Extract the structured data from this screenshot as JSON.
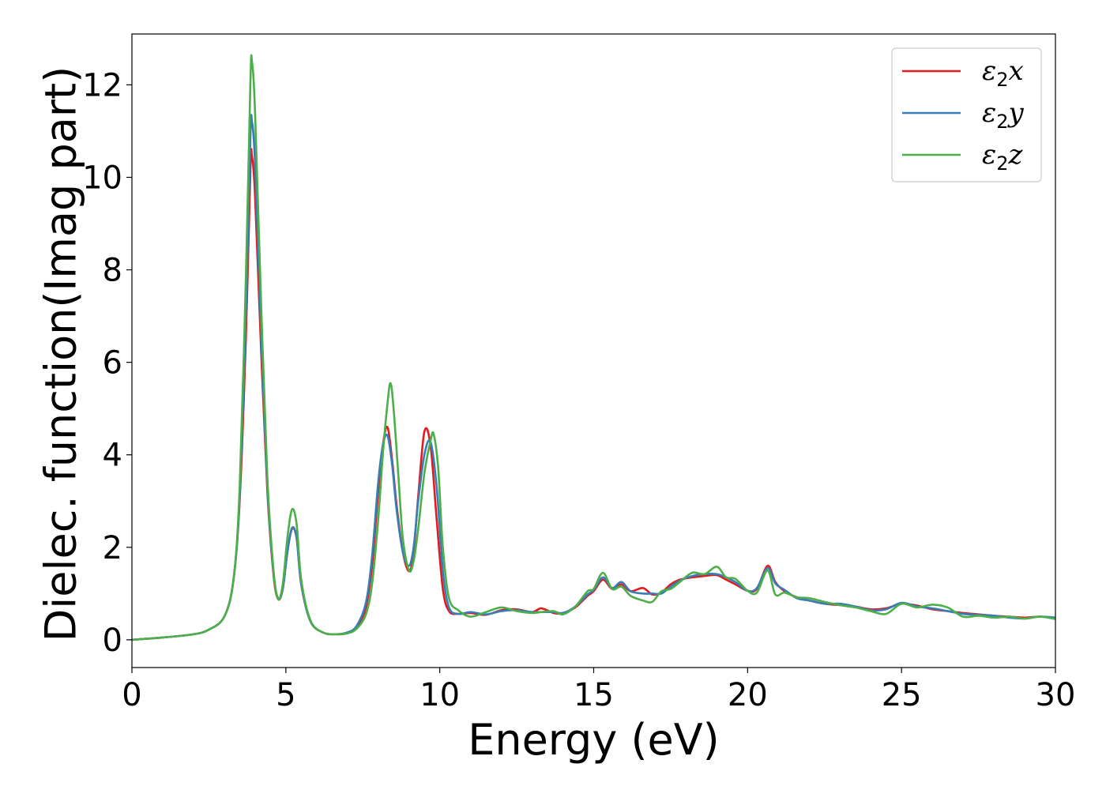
{
  "chart_data": {
    "type": "line",
    "title": "",
    "xlabel": "Energy (eV)",
    "ylabel": "Dielec. function(Imag part)",
    "xlim": [
      0,
      30
    ],
    "ylim": [
      -0.6,
      13.1
    ],
    "xticks": [
      0,
      5,
      10,
      15,
      20,
      25,
      30
    ],
    "yticks": [
      0,
      2,
      4,
      6,
      8,
      10,
      12
    ],
    "grid": false,
    "legend_position": "top-right",
    "colors": {
      "x": "#e41a1c",
      "y": "#377eb8",
      "z": "#4daf4a"
    },
    "series": [
      {
        "key": "x",
        "name": {
          "base": "ε",
          "sub": "2",
          "axis": "x"
        },
        "color": "#e41a1c",
        "x": [
          0,
          1,
          2,
          2.5,
          3,
          3.3,
          3.5,
          3.7,
          3.85,
          3.9,
          4.0,
          4.2,
          4.4,
          4.6,
          4.75,
          4.9,
          5.05,
          5.2,
          5.35,
          5.5,
          5.8,
          6.2,
          6.6,
          7.0,
          7.3,
          7.6,
          7.8,
          8.0,
          8.15,
          8.3,
          8.45,
          8.6,
          8.8,
          9.0,
          9.15,
          9.3,
          9.5,
          9.7,
          9.9,
          10.1,
          10.3,
          10.6,
          11.0,
          11.5,
          12.0,
          12.5,
          13.0,
          13.3,
          13.7,
          14.0,
          14.4,
          14.8,
          15.0,
          15.3,
          15.6,
          15.9,
          16.2,
          16.6,
          16.9,
          17.2,
          17.5,
          17.8,
          18.2,
          18.6,
          19.0,
          19.3,
          19.6,
          20.0,
          20.3,
          20.65,
          20.9,
          21.2,
          21.6,
          22.0,
          22.5,
          23.0,
          23.5,
          24.0,
          24.5,
          25.0,
          25.5,
          26.0,
          26.5,
          27.0,
          27.5,
          28.0,
          28.5,
          29.0,
          29.5,
          30.0
        ],
        "y": [
          0.0,
          0.05,
          0.12,
          0.22,
          0.5,
          1.3,
          3.0,
          6.5,
          10.2,
          10.45,
          9.6,
          6.2,
          3.2,
          1.4,
          0.88,
          1.1,
          1.9,
          2.4,
          2.2,
          1.2,
          0.4,
          0.16,
          0.12,
          0.15,
          0.28,
          0.7,
          1.6,
          3.2,
          4.2,
          4.6,
          3.9,
          2.9,
          1.9,
          1.48,
          1.9,
          3.1,
          4.5,
          4.2,
          2.6,
          1.1,
          0.62,
          0.56,
          0.58,
          0.54,
          0.64,
          0.66,
          0.6,
          0.68,
          0.58,
          0.58,
          0.7,
          0.95,
          1.05,
          1.3,
          1.1,
          1.2,
          1.05,
          1.12,
          0.98,
          1.02,
          1.2,
          1.3,
          1.35,
          1.38,
          1.4,
          1.3,
          1.2,
          1.06,
          1.1,
          1.6,
          1.25,
          1.05,
          0.92,
          0.85,
          0.78,
          0.75,
          0.72,
          0.66,
          0.68,
          0.78,
          0.74,
          0.66,
          0.62,
          0.58,
          0.55,
          0.52,
          0.5,
          0.48,
          0.5,
          0.47
        ]
      },
      {
        "key": "y",
        "name": {
          "base": "ε",
          "sub": "2",
          "axis": "y"
        },
        "color": "#377eb8",
        "x": [
          0,
          1,
          2,
          2.5,
          3,
          3.3,
          3.5,
          3.7,
          3.85,
          3.9,
          4.0,
          4.2,
          4.4,
          4.6,
          4.75,
          4.9,
          5.05,
          5.2,
          5.35,
          5.5,
          5.8,
          6.2,
          6.6,
          7.0,
          7.3,
          7.6,
          7.8,
          8.0,
          8.15,
          8.3,
          8.45,
          8.6,
          8.8,
          9.0,
          9.15,
          9.3,
          9.5,
          9.7,
          9.9,
          10.1,
          10.3,
          10.6,
          11.0,
          11.5,
          12.0,
          12.5,
          13.0,
          13.3,
          13.7,
          14.0,
          14.4,
          14.8,
          15.0,
          15.3,
          15.6,
          15.9,
          16.2,
          16.6,
          16.9,
          17.2,
          17.5,
          17.8,
          18.2,
          18.6,
          19.0,
          19.3,
          19.6,
          20.0,
          20.3,
          20.65,
          20.9,
          21.2,
          21.6,
          22.0,
          22.5,
          23.0,
          23.5,
          24.0,
          24.5,
          25.0,
          25.5,
          26.0,
          26.5,
          27.0,
          27.5,
          28.0,
          28.5,
          29.0,
          29.5,
          30.0
        ],
        "y": [
          0.0,
          0.05,
          0.12,
          0.22,
          0.5,
          1.3,
          3.1,
          7.0,
          10.9,
          11.2,
          10.3,
          6.6,
          3.3,
          1.45,
          0.9,
          1.1,
          1.9,
          2.42,
          2.2,
          1.2,
          0.4,
          0.16,
          0.12,
          0.16,
          0.3,
          0.8,
          1.8,
          3.4,
          4.2,
          4.42,
          3.8,
          2.8,
          1.9,
          1.6,
          2.0,
          3.0,
          4.0,
          4.28,
          3.3,
          1.5,
          0.7,
          0.56,
          0.6,
          0.55,
          0.62,
          0.64,
          0.6,
          0.6,
          0.6,
          0.58,
          0.72,
          0.98,
          1.08,
          1.35,
          1.12,
          1.25,
          1.05,
          1.0,
          1.0,
          1.0,
          1.15,
          1.28,
          1.38,
          1.42,
          1.42,
          1.35,
          1.25,
          1.06,
          1.12,
          1.55,
          1.22,
          1.08,
          0.9,
          0.85,
          0.78,
          0.78,
          0.72,
          0.64,
          0.66,
          0.8,
          0.72,
          0.68,
          0.62,
          0.56,
          0.54,
          0.52,
          0.48,
          0.46,
          0.5,
          0.48
        ]
      },
      {
        "key": "z",
        "name": {
          "base": "ε",
          "sub": "2",
          "axis": "z"
        },
        "color": "#4daf4a",
        "x": [
          0,
          1,
          2,
          2.5,
          3,
          3.3,
          3.5,
          3.7,
          3.85,
          3.9,
          4.0,
          4.2,
          4.4,
          4.6,
          4.75,
          4.9,
          5.05,
          5.2,
          5.35,
          5.5,
          5.8,
          6.2,
          6.6,
          7.0,
          7.3,
          7.6,
          7.8,
          8.0,
          8.15,
          8.3,
          8.4,
          8.5,
          8.65,
          8.8,
          9.0,
          9.15,
          9.3,
          9.5,
          9.7,
          9.8,
          9.95,
          10.1,
          10.3,
          10.6,
          11.0,
          11.5,
          12.0,
          12.5,
          13.0,
          13.3,
          13.7,
          14.0,
          14.4,
          14.8,
          15.0,
          15.3,
          15.6,
          15.9,
          16.2,
          16.6,
          16.9,
          17.2,
          17.5,
          17.8,
          18.2,
          18.6,
          19.0,
          19.3,
          19.6,
          20.0,
          20.3,
          20.65,
          20.9,
          21.2,
          21.6,
          22.0,
          22.5,
          23.0,
          23.5,
          24.0,
          24.5,
          25.0,
          25.5,
          26.0,
          26.5,
          27.0,
          27.5,
          28.0,
          28.5,
          29.0,
          29.5,
          30.0
        ],
        "y": [
          0.0,
          0.05,
          0.12,
          0.22,
          0.5,
          1.3,
          3.3,
          7.8,
          12.1,
          12.5,
          11.4,
          7.2,
          3.5,
          1.5,
          0.88,
          1.2,
          2.2,
          2.82,
          2.5,
          1.3,
          0.42,
          0.16,
          0.12,
          0.14,
          0.24,
          0.55,
          1.2,
          2.6,
          4.0,
          5.1,
          5.55,
          5.0,
          3.6,
          2.2,
          1.5,
          1.7,
          2.4,
          3.6,
          4.3,
          4.45,
          3.7,
          2.0,
          0.9,
          0.64,
          0.5,
          0.6,
          0.7,
          0.62,
          0.58,
          0.6,
          0.62,
          0.55,
          0.72,
          1.05,
          1.1,
          1.45,
          1.1,
          1.15,
          0.95,
          0.85,
          0.82,
          1.05,
          1.1,
          1.25,
          1.45,
          1.42,
          1.58,
          1.35,
          1.32,
          1.06,
          1.02,
          1.5,
          0.98,
          1.02,
          0.92,
          0.9,
          0.82,
          0.75,
          0.7,
          0.62,
          0.56,
          0.78,
          0.7,
          0.76,
          0.7,
          0.5,
          0.52,
          0.48,
          0.5,
          0.46,
          0.5,
          0.45
        ]
      }
    ]
  }
}
